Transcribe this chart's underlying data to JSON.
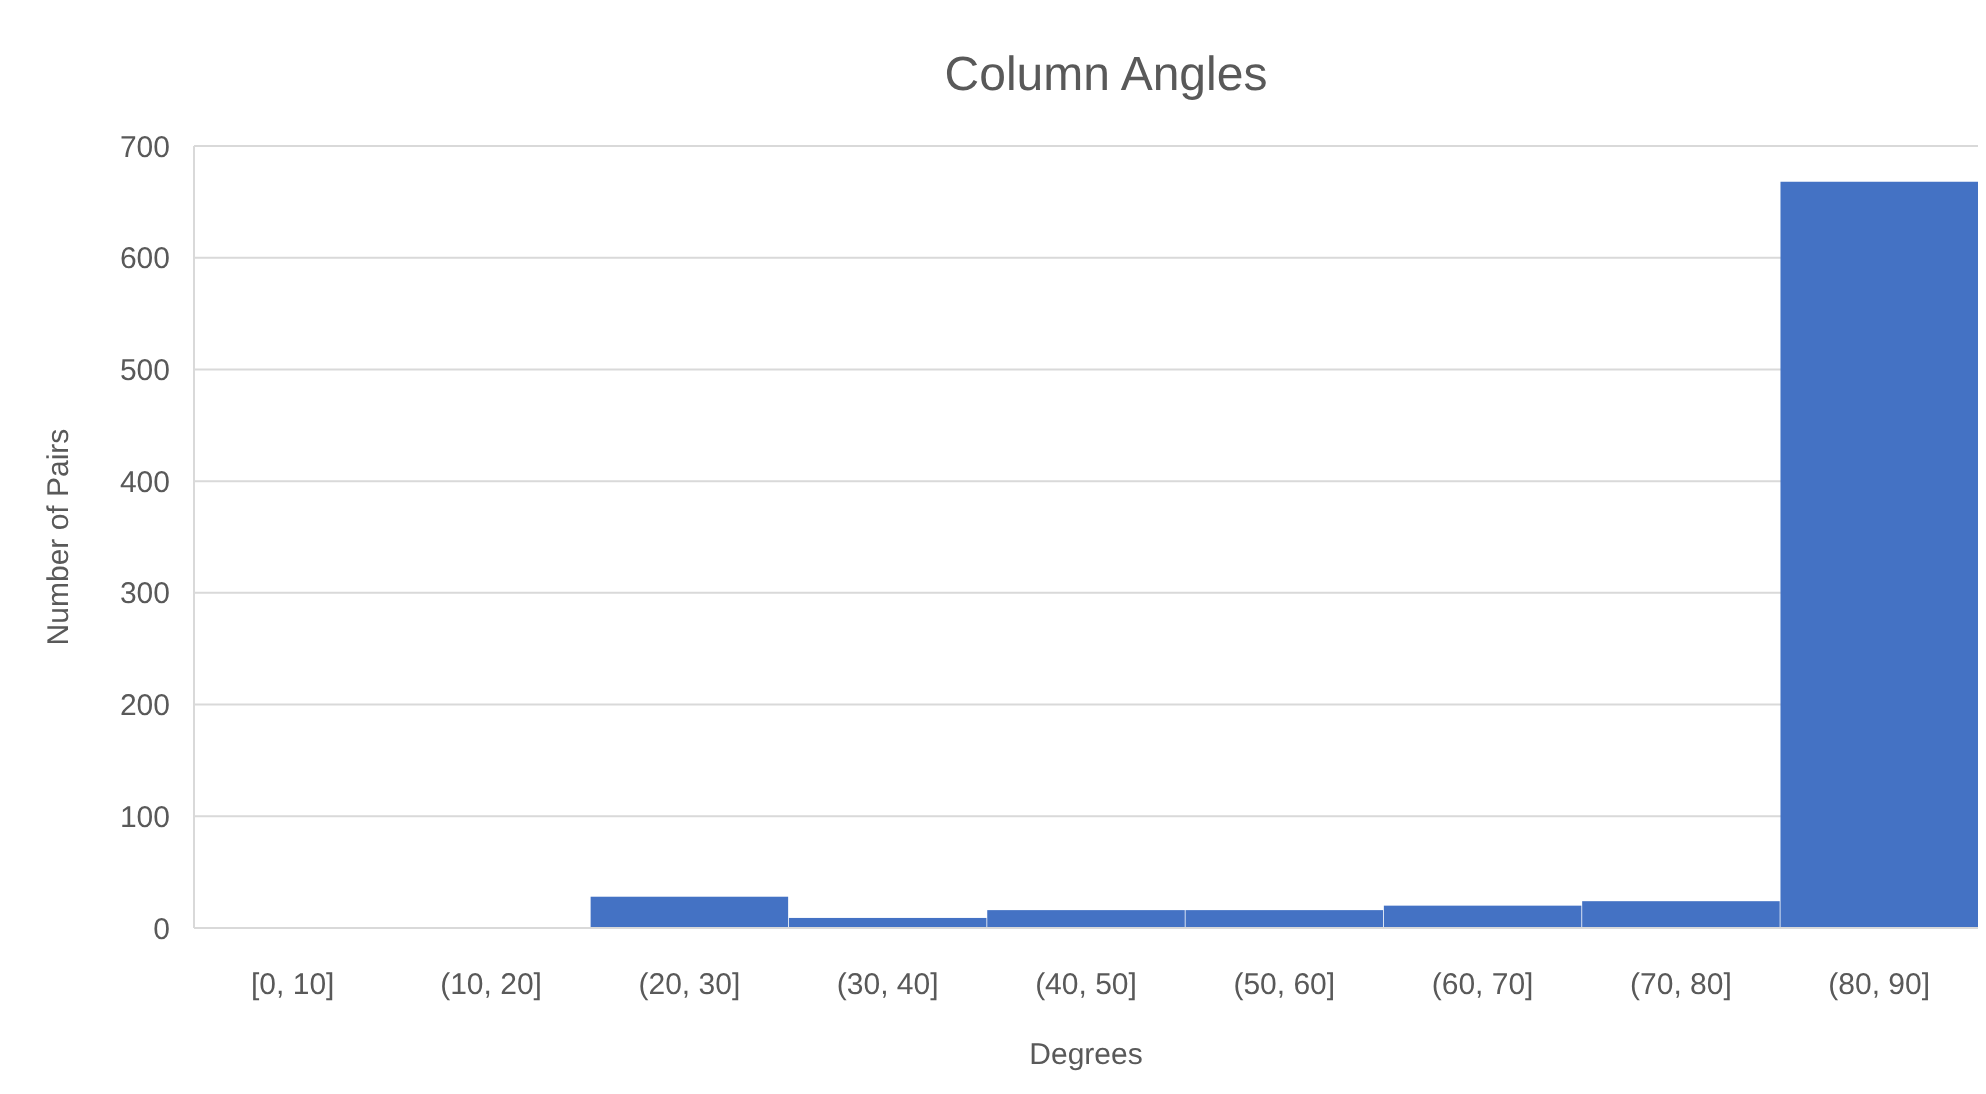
{
  "chart_data": {
    "type": "bar",
    "title": "Column Angles",
    "xlabel": "Degrees",
    "ylabel": "Number of Pairs",
    "categories": [
      "[0, 10]",
      "(10, 20]",
      "(20, 30]",
      "(30, 40]",
      "(40, 50]",
      "(50, 60]",
      "(60, 70]",
      "(70, 80]",
      "(80, 90]"
    ],
    "values": [
      0,
      0,
      28,
      9,
      16,
      16,
      20,
      24,
      668
    ],
    "color": "#4472c4",
    "ylim": [
      0,
      700
    ],
    "yticks": [
      0,
      100,
      200,
      300,
      400,
      500,
      600,
      700
    ],
    "grid": "y"
  }
}
